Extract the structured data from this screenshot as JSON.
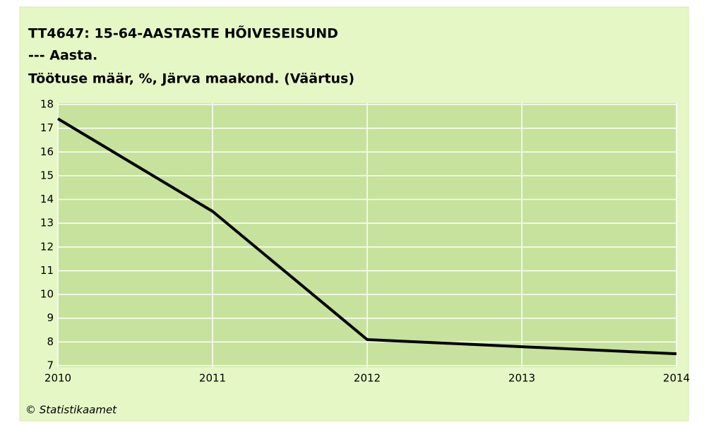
{
  "chart_data": {
    "type": "line",
    "title": "TT4647: 15-64-AASTASTE HÕIVESEISUND",
    "subtitle": "--- Aasta.",
    "y_label": "Töötuse määr, %, Järva maakond. (Väärtus)",
    "x": [
      2010,
      2011,
      2012,
      2013,
      2014
    ],
    "series": [
      {
        "name": "Järva maakond",
        "color": "#000000",
        "values": [
          17.4,
          13.5,
          8.1,
          7.8,
          7.5
        ]
      }
    ],
    "xlim": [
      2010,
      2014
    ],
    "xticks": [
      2010,
      2011,
      2012,
      2013,
      2014
    ],
    "ylim": [
      7,
      18
    ],
    "yticks": [
      7,
      8,
      9,
      10,
      11,
      12,
      13,
      14,
      15,
      16,
      17,
      18
    ],
    "grid": true,
    "source": "© Statistikaamet"
  }
}
